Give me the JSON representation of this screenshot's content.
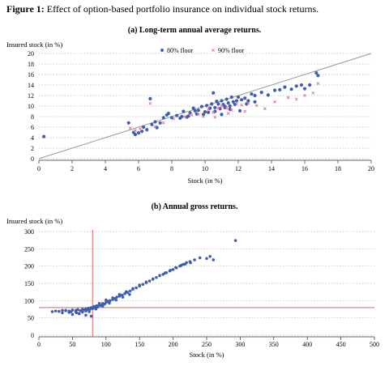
{
  "figure": {
    "number_label": "Figure 1:",
    "caption": "Effect of option-based portfolio insurance on individual stock returns."
  },
  "colors": {
    "floor80": "#3f5fae",
    "floor90": "#e0709a",
    "diagonal": "#999999",
    "refline": "#e06060",
    "grid": "#b8b8b8"
  },
  "chart_data": [
    {
      "type": "scatter",
      "title": "(a) Long-term annual average returns.",
      "xlabel": "Stock (in %)",
      "ylabel": "Insured stock (in %)",
      "xlim": [
        0,
        20
      ],
      "ylim": [
        0,
        20
      ],
      "xticks": [
        0,
        2,
        4,
        6,
        8,
        10,
        12,
        14,
        16,
        18,
        20
      ],
      "yticks": [
        0,
        2,
        4,
        6,
        8,
        10,
        12,
        14,
        16,
        18,
        20
      ],
      "grid": "horizontal-dotted",
      "legend_position": "top-center",
      "reference_line": "y = x",
      "series": [
        {
          "name": "80% floor",
          "x": [
            0.3,
            5.4,
            5.7,
            5.8,
            6.0,
            6.3,
            6.5,
            6.7,
            6.8,
            7.0,
            7.1,
            7.3,
            7.5,
            7.8,
            8.0,
            8.3,
            8.5,
            8.7,
            8.9,
            9.1,
            9.3,
            9.5,
            9.6,
            9.8,
            10.0,
            10.1,
            10.3,
            10.4,
            10.5,
            10.6,
            10.7,
            10.8,
            10.9,
            11.0,
            11.1,
            11.2,
            11.3,
            11.4,
            11.5,
            11.6,
            11.7,
            11.8,
            11.9,
            12.0,
            12.2,
            12.4,
            12.6,
            12.8,
            13.0,
            13.4,
            13.8,
            14.2,
            14.5,
            14.8,
            15.2,
            15.5,
            15.8,
            16.0,
            16.3,
            16.7,
            16.8,
            9.0,
            9.9,
            10.2,
            11.0,
            11.5,
            12.1,
            8.6,
            10.6,
            11.2,
            12.5,
            13.0,
            6.2,
            7.7,
            9.4
          ],
          "y": [
            4.2,
            6.8,
            5.0,
            4.6,
            4.9,
            6.0,
            5.5,
            11.4,
            6.5,
            7.0,
            5.9,
            6.8,
            7.8,
            8.6,
            7.8,
            8.2,
            7.7,
            9.0,
            7.9,
            8.7,
            9.6,
            8.5,
            9.2,
            9.9,
            8.9,
            10.1,
            9.6,
            10.4,
            12.5,
            9.7,
            10.9,
            10.4,
            9.5,
            11.0,
            10.3,
            9.7,
            11.3,
            10.6,
            10.0,
            11.7,
            10.8,
            10.3,
            11.0,
            11.7,
            11.2,
            11.5,
            11.0,
            12.3,
            12.0,
            12.6,
            12.1,
            13.0,
            13.1,
            13.6,
            13.2,
            13.8,
            14.0,
            13.3,
            14.0,
            16.3,
            15.8,
            8.1,
            8.4,
            8.8,
            8.4,
            9.4,
            9.1,
            8.0,
            9.0,
            9.9,
            10.4,
            10.8,
            5.2,
            8.3,
            9.1
          ]
        },
        {
          "name": "90% floor",
          "x": [
            5.5,
            5.8,
            6.1,
            6.7,
            7.0,
            7.5,
            8.1,
            8.8,
            9.2,
            9.6,
            9.9,
            10.2,
            10.5,
            10.8,
            11.0,
            11.3,
            11.6,
            11.9,
            12.2,
            12.6,
            13.1,
            13.6,
            14.2,
            15.0,
            15.5,
            16.0,
            16.5,
            16.8,
            10.6,
            11.4,
            12.4
          ],
          "y": [
            5.8,
            5.4,
            5.7,
            10.5,
            6.1,
            6.8,
            7.6,
            8.0,
            8.3,
            8.4,
            8.0,
            9.4,
            8.8,
            9.6,
            10.0,
            9.6,
            9.2,
            10.4,
            10.2,
            10.5,
            10.1,
            9.5,
            10.8,
            11.6,
            11.3,
            12.0,
            12.5,
            14.3,
            7.9,
            8.6,
            9.0
          ]
        }
      ]
    },
    {
      "type": "scatter",
      "title": "(b) Annual gross returns.",
      "xlabel": "Stock (in %)",
      "ylabel": "Insured stock (in %)",
      "xlim": [
        0,
        500
      ],
      "ylim": [
        0,
        300
      ],
      "xticks": [
        0,
        50,
        100,
        150,
        200,
        250,
        300,
        350,
        400,
        450,
        500
      ],
      "yticks": [
        0,
        50,
        100,
        150,
        200,
        250,
        300
      ],
      "grid": "horizontal-dotted",
      "reference_lines": {
        "x": 80,
        "y": 80
      },
      "series": [
        {
          "name": "80% floor",
          "x": [
            20,
            25,
            30,
            35,
            40,
            45,
            50,
            55,
            58,
            62,
            65,
            68,
            70,
            72,
            74,
            76,
            78,
            80,
            82,
            84,
            86,
            88,
            90,
            92,
            95,
            98,
            100,
            103,
            106,
            110,
            113,
            116,
            120,
            124,
            128,
            132,
            136,
            140,
            145,
            150,
            155,
            160,
            165,
            170,
            175,
            180,
            185,
            190,
            195,
            200,
            205,
            210,
            215,
            220,
            225,
            232,
            240,
            255,
            293,
            35,
            45,
            55,
            60,
            65,
            70,
            75,
            85,
            95,
            105,
            115,
            125,
            135,
            50,
            60,
            70,
            78,
            40,
            48,
            56,
            90,
            100,
            110,
            120,
            130,
            140,
            150,
            160,
            170,
            180,
            188,
            196,
            204,
            212,
            218,
            226,
            250,
            260
          ],
          "y": [
            68,
            70,
            69,
            72,
            71,
            70,
            73,
            72,
            74,
            71,
            75,
            73,
            76,
            74,
            78,
            75,
            80,
            77,
            83,
            79,
            85,
            82,
            88,
            86,
            92,
            90,
            95,
            98,
            100,
            103,
            106,
            110,
            113,
            116,
            120,
            124,
            128,
            133,
            137,
            142,
            147,
            152,
            157,
            162,
            167,
            172,
            176,
            181,
            186,
            190,
            195,
            200,
            205,
            210,
            213,
            218,
            224,
            228,
            274,
            65,
            66,
            68,
            63,
            67,
            70,
            68,
            76,
            84,
            93,
            102,
            110,
            118,
            60,
            62,
            58,
            55,
            72,
            68,
            65,
            92,
            102,
            108,
            118,
            126,
            135,
            145,
            154,
            163,
            173,
            180,
            188,
            196,
            202,
            206,
            210,
            222,
            218
          ]
        }
      ]
    }
  ]
}
